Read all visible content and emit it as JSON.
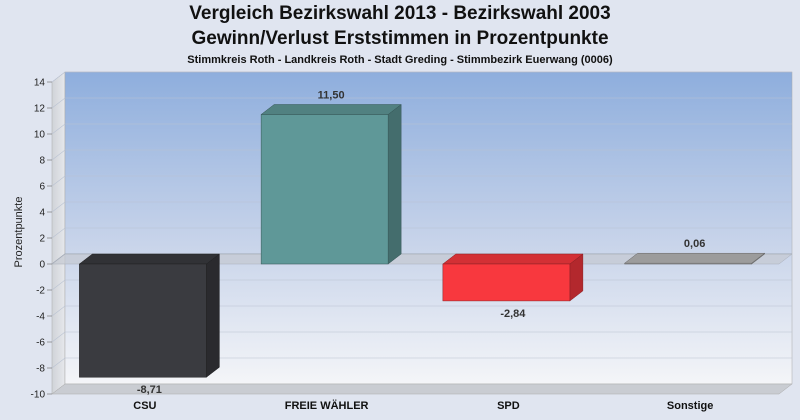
{
  "chart_data": {
    "type": "bar",
    "title": "Vergleich Bezirkswahl 2013 - Bezirkswahl 2003",
    "subtitle": "Gewinn/Verlust Erststimmen in Prozentpunkte",
    "caption": "Stimmkreis Roth - Landkreis Roth - Stadt Greding - Stimmbezirk Euerwang (0006)",
    "ylabel": "Prozentpunkte",
    "xlabel": "",
    "ylim": [
      -10,
      14
    ],
    "yticks": [
      14,
      12,
      10,
      8,
      6,
      4,
      2,
      0,
      -2,
      -4,
      -6,
      -8,
      -10
    ],
    "categories": [
      "CSU",
      "FREIE WÄHLER",
      "SPD",
      "Sonstige"
    ],
    "values": [
      -8.71,
      11.5,
      -2.84,
      0.06
    ],
    "value_labels": [
      "-8,71",
      "11,50",
      "-2,84",
      "0,06"
    ],
    "colors": [
      "#3a3b40",
      "#5f9898",
      "#f8383e",
      "#b8b8b8"
    ],
    "grid": true,
    "style": "3d"
  }
}
